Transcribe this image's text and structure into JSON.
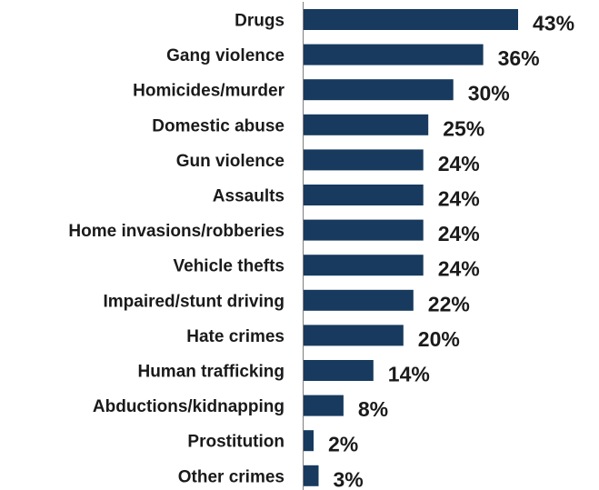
{
  "chart_data": {
    "type": "bar",
    "orientation": "horizontal",
    "categories": [
      "Drugs",
      "Gang violence",
      "Homicides/murder",
      "Domestic abuse",
      "Gun violence",
      "Assaults",
      "Home invasions/robberies",
      "Vehicle thefts",
      "Impaired/stunt driving",
      "Hate crimes",
      "Human trafficking",
      "Abductions/kidnapping",
      "Prostitution",
      "Other crimes"
    ],
    "values": [
      43,
      36,
      30,
      25,
      24,
      24,
      24,
      24,
      22,
      20,
      14,
      8,
      2,
      3
    ],
    "value_labels": [
      "43%",
      "36%",
      "30%",
      "25%",
      "24%",
      "24%",
      "24%",
      "24%",
      "22%",
      "20%",
      "14%",
      "8%",
      "2%",
      "3%"
    ],
    "xlim": [
      0,
      45
    ],
    "grid": false,
    "bar_color": "#173a5e",
    "axis_color": "#7f7f7f"
  }
}
